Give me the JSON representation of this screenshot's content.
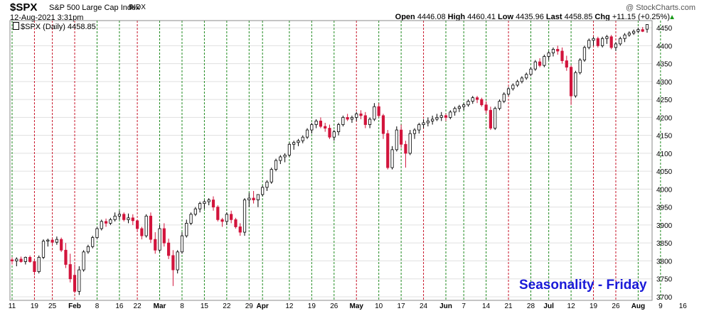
{
  "header": {
    "symbol": "$SPX",
    "name": "S&P 500 Large Cap Index",
    "exchange": "INDX",
    "watermark": "@ StockCharts.com",
    "datetime": "12-Aug-2021 3:31pm",
    "open_label": "Open",
    "open": "4446.08",
    "high_label": "High",
    "high": "4460.41",
    "low_label": "Low",
    "low": "4435.96",
    "last_label": "Last",
    "last": "4458.85",
    "chg_label": "Chg",
    "chg": "+11.15 (+0.25%)",
    "legend": "$SPX (Daily) 4458.85"
  },
  "annotation": "Seasonality - Friday",
  "colors": {
    "up": "#ffffff",
    "down": "#d2143c",
    "green_line": "#1f8a1f",
    "red_line": "#c81428",
    "grid": "#e0e0e0"
  },
  "chart_data": {
    "type": "candlestick",
    "y_axis": {
      "min": 3690,
      "max": 4470,
      "side": "right",
      "ticks": [
        3700,
        3750,
        3800,
        3850,
        3900,
        3950,
        4000,
        4050,
        4100,
        4150,
        4200,
        4250,
        4300,
        4350,
        4400,
        4450
      ]
    },
    "x_ticks": [
      {
        "label": "11",
        "i": 0
      },
      {
        "label": "19",
        "i": 5
      },
      {
        "label": "25",
        "i": 9
      },
      {
        "label": "Feb",
        "i": 14
      },
      {
        "label": "8",
        "i": 19
      },
      {
        "label": "16",
        "i": 24
      },
      {
        "label": "22",
        "i": 28
      },
      {
        "label": "Mar",
        "i": 33
      },
      {
        "label": "8",
        "i": 38
      },
      {
        "label": "15",
        "i": 43
      },
      {
        "label": "22",
        "i": 48
      },
      {
        "label": "29",
        "i": 53
      },
      {
        "label": "Apr",
        "i": 56
      },
      {
        "label": "12",
        "i": 62
      },
      {
        "label": "19",
        "i": 67
      },
      {
        "label": "26",
        "i": 72
      },
      {
        "label": "May",
        "i": 77
      },
      {
        "label": "10",
        "i": 82
      },
      {
        "label": "17",
        "i": 87
      },
      {
        "label": "24",
        "i": 92
      },
      {
        "label": "Jun",
        "i": 97
      },
      {
        "label": "7",
        "i": 101
      },
      {
        "label": "14",
        "i": 106
      },
      {
        "label": "21",
        "i": 111
      },
      {
        "label": "28",
        "i": 116
      },
      {
        "label": "Jul",
        "i": 120
      },
      {
        "label": "12",
        "i": 125
      },
      {
        "label": "19",
        "i": 130
      },
      {
        "label": "26",
        "i": 135
      },
      {
        "label": "Aug",
        "i": 140
      },
      {
        "label": "9",
        "i": 145
      },
      {
        "label": "16",
        "i": 150
      }
    ],
    "vertical_lines": [
      {
        "i": 0,
        "c": "green"
      },
      {
        "i": 5,
        "c": "red"
      },
      {
        "i": 9,
        "c": "red"
      },
      {
        "i": 14,
        "c": "red"
      },
      {
        "i": 19,
        "c": "green"
      },
      {
        "i": 24,
        "c": "green"
      },
      {
        "i": 28,
        "c": "red"
      },
      {
        "i": 33,
        "c": "green"
      },
      {
        "i": 38,
        "c": "green"
      },
      {
        "i": 43,
        "c": "green"
      },
      {
        "i": 48,
        "c": "green"
      },
      {
        "i": 53,
        "c": "green"
      },
      {
        "i": 56,
        "c": "green"
      },
      {
        "i": 62,
        "c": "green"
      },
      {
        "i": 67,
        "c": "green"
      },
      {
        "i": 72,
        "c": "green"
      },
      {
        "i": 77,
        "c": "red"
      },
      {
        "i": 82,
        "c": "green"
      },
      {
        "i": 87,
        "c": "green"
      },
      {
        "i": 92,
        "c": "red"
      },
      {
        "i": 97,
        "c": "green"
      },
      {
        "i": 101,
        "c": "green"
      },
      {
        "i": 106,
        "c": "green"
      },
      {
        "i": 111,
        "c": "red"
      },
      {
        "i": 116,
        "c": "green"
      },
      {
        "i": 120,
        "c": "green"
      },
      {
        "i": 125,
        "c": "green"
      },
      {
        "i": 130,
        "c": "red"
      },
      {
        "i": 135,
        "c": "red"
      },
      {
        "i": 140,
        "c": "green"
      },
      {
        "i": 145,
        "c": "green"
      }
    ],
    "candles": [
      [
        3803,
        3810,
        3790,
        3800
      ],
      [
        3800,
        3810,
        3785,
        3805
      ],
      [
        3805,
        3812,
        3795,
        3798
      ],
      [
        3798,
        3812,
        3790,
        3810
      ],
      [
        3810,
        3815,
        3795,
        3798
      ],
      [
        3798,
        3805,
        3760,
        3770
      ],
      [
        3770,
        3815,
        3765,
        3810
      ],
      [
        3810,
        3860,
        3805,
        3855
      ],
      [
        3855,
        3862,
        3840,
        3858
      ],
      [
        3858,
        3862,
        3845,
        3852
      ],
      [
        3852,
        3868,
        3845,
        3860
      ],
      [
        3860,
        3865,
        3825,
        3830
      ],
      [
        3830,
        3850,
        3780,
        3790
      ],
      [
        3790,
        3820,
        3740,
        3750
      ],
      [
        3760,
        3790,
        3710,
        3715
      ],
      [
        3715,
        3785,
        3705,
        3775
      ],
      [
        3775,
        3830,
        3770,
        3825
      ],
      [
        3825,
        3845,
        3820,
        3840
      ],
      [
        3840,
        3870,
        3835,
        3865
      ],
      [
        3865,
        3895,
        3860,
        3890
      ],
      [
        3890,
        3915,
        3885,
        3910
      ],
      [
        3910,
        3918,
        3895,
        3905
      ],
      [
        3905,
        3920,
        3900,
        3915
      ],
      [
        3915,
        3935,
        3910,
        3925
      ],
      [
        3925,
        3940,
        3915,
        3930
      ],
      [
        3930,
        3935,
        3910,
        3915
      ],
      [
        3915,
        3932,
        3905,
        3920
      ],
      [
        3920,
        3930,
        3900,
        3912
      ],
      [
        3912,
        3915,
        3880,
        3890
      ],
      [
        3890,
        3895,
        3860,
        3870
      ],
      [
        3870,
        3930,
        3865,
        3925
      ],
      [
        3925,
        3935,
        3850,
        3860
      ],
      [
        3860,
        3880,
        3820,
        3830
      ],
      [
        3830,
        3900,
        3825,
        3890
      ],
      [
        3890,
        3905,
        3840,
        3850
      ],
      [
        3850,
        3862,
        3805,
        3815
      ],
      [
        3815,
        3830,
        3730,
        3775
      ],
      [
        3775,
        3830,
        3765,
        3825
      ],
      [
        3825,
        3880,
        3820,
        3870
      ],
      [
        3870,
        3915,
        3865,
        3905
      ],
      [
        3905,
        3935,
        3900,
        3930
      ],
      [
        3930,
        3950,
        3925,
        3945
      ],
      [
        3945,
        3965,
        3935,
        3960
      ],
      [
        3960,
        3970,
        3945,
        3965
      ],
      [
        3965,
        3975,
        3955,
        3970
      ],
      [
        3970,
        3980,
        3940,
        3950
      ],
      [
        3950,
        3955,
        3910,
        3915
      ],
      [
        3915,
        3920,
        3895,
        3910
      ],
      [
        3910,
        3935,
        3900,
        3930
      ],
      [
        3930,
        3940,
        3905,
        3915
      ],
      [
        3915,
        3920,
        3890,
        3895
      ],
      [
        3895,
        3905,
        3870,
        3880
      ],
      [
        3880,
        3975,
        3870,
        3970
      ],
      [
        3970,
        3990,
        3950,
        3975
      ],
      [
        3975,
        3995,
        3960,
        3970
      ],
      [
        3970,
        3980,
        3950,
        3985
      ],
      [
        3985,
        4010,
        3980,
        4005
      ],
      [
        4005,
        4025,
        3995,
        4020
      ],
      [
        4020,
        4060,
        4015,
        4055
      ],
      [
        4055,
        4085,
        4050,
        4080
      ],
      [
        4080,
        4095,
        4070,
        4090
      ],
      [
        4090,
        4100,
        4075,
        4095
      ],
      [
        4095,
        4130,
        4090,
        4125
      ],
      [
        4125,
        4135,
        4110,
        4130
      ],
      [
        4130,
        4140,
        4120,
        4135
      ],
      [
        4135,
        4150,
        4128,
        4145
      ],
      [
        4145,
        4170,
        4140,
        4165
      ],
      [
        4165,
        4185,
        4155,
        4180
      ],
      [
        4180,
        4195,
        4170,
        4190
      ],
      [
        4190,
        4200,
        4170,
        4175
      ],
      [
        4175,
        4185,
        4160,
        4170
      ],
      [
        4170,
        4180,
        4140,
        4145
      ],
      [
        4145,
        4165,
        4135,
        4160
      ],
      [
        4160,
        4185,
        4150,
        4180
      ],
      [
        4180,
        4205,
        4175,
        4200
      ],
      [
        4200,
        4210,
        4190,
        4195
      ],
      [
        4195,
        4205,
        4185,
        4200
      ],
      [
        4200,
        4215,
        4190,
        4210
      ],
      [
        4210,
        4220,
        4195,
        4205
      ],
      [
        4205,
        4215,
        4170,
        4180
      ],
      [
        4180,
        4200,
        4170,
        4195
      ],
      [
        4195,
        4240,
        4190,
        4230
      ],
      [
        4230,
        4240,
        4200,
        4205
      ],
      [
        4205,
        4210,
        4140,
        4155
      ],
      [
        4155,
        4165,
        4055,
        4060
      ],
      [
        4060,
        4120,
        4055,
        4110
      ],
      [
        4110,
        4175,
        4105,
        4165
      ],
      [
        4165,
        4180,
        4115,
        4125
      ],
      [
        4125,
        4135,
        4060,
        4100
      ],
      [
        4100,
        4165,
        4095,
        4155
      ],
      [
        4155,
        4170,
        4140,
        4165
      ],
      [
        4165,
        4185,
        4155,
        4180
      ],
      [
        4180,
        4195,
        4170,
        4185
      ],
      [
        4185,
        4200,
        4175,
        4190
      ],
      [
        4190,
        4205,
        4180,
        4195
      ],
      [
        4195,
        4210,
        4190,
        4200
      ],
      [
        4200,
        4215,
        4190,
        4205
      ],
      [
        4205,
        4210,
        4190,
        4200
      ],
      [
        4200,
        4220,
        4195,
        4215
      ],
      [
        4215,
        4230,
        4205,
        4225
      ],
      [
        4225,
        4235,
        4215,
        4230
      ],
      [
        4230,
        4240,
        4220,
        4235
      ],
      [
        4235,
        4250,
        4230,
        4245
      ],
      [
        4245,
        4260,
        4238,
        4255
      ],
      [
        4255,
        4260,
        4240,
        4250
      ],
      [
        4250,
        4255,
        4230,
        4235
      ],
      [
        4235,
        4245,
        4210,
        4220
      ],
      [
        4220,
        4230,
        4165,
        4170
      ],
      [
        4170,
        4230,
        4165,
        4225
      ],
      [
        4225,
        4250,
        4220,
        4245
      ],
      [
        4245,
        4270,
        4240,
        4265
      ],
      [
        4265,
        4285,
        4260,
        4280
      ],
      [
        4280,
        4295,
        4275,
        4290
      ],
      [
        4290,
        4305,
        4285,
        4300
      ],
      [
        4300,
        4315,
        4295,
        4310
      ],
      [
        4310,
        4325,
        4305,
        4320
      ],
      [
        4320,
        4340,
        4315,
        4335
      ],
      [
        4335,
        4360,
        4330,
        4355
      ],
      [
        4355,
        4365,
        4340,
        4345
      ],
      [
        4345,
        4375,
        4340,
        4370
      ],
      [
        4370,
        4385,
        4360,
        4380
      ],
      [
        4380,
        4395,
        4370,
        4390
      ],
      [
        4390,
        4400,
        4375,
        4385
      ],
      [
        4385,
        4395,
        4350,
        4358
      ],
      [
        4358,
        4372,
        4330,
        4340
      ],
      [
        4340,
        4345,
        4235,
        4260
      ],
      [
        4260,
        4330,
        4255,
        4325
      ],
      [
        4325,
        4365,
        4320,
        4360
      ],
      [
        4360,
        4400,
        4355,
        4395
      ],
      [
        4395,
        4420,
        4390,
        4415
      ],
      [
        4415,
        4425,
        4400,
        4420
      ],
      [
        4420,
        4425,
        4395,
        4400
      ],
      [
        4400,
        4425,
        4395,
        4420
      ],
      [
        4420,
        4430,
        4405,
        4425
      ],
      [
        4425,
        4430,
        4390,
        4395
      ],
      [
        4395,
        4410,
        4385,
        4405
      ],
      [
        4405,
        4425,
        4400,
        4420
      ],
      [
        4420,
        4435,
        4410,
        4430
      ],
      [
        4430,
        4440,
        4425,
        4435
      ],
      [
        4435,
        4445,
        4430,
        4440
      ],
      [
        4440,
        4450,
        4435,
        4445
      ],
      [
        4445,
        4452,
        4438,
        4440
      ],
      [
        4446,
        4460,
        4436,
        4459
      ]
    ]
  }
}
